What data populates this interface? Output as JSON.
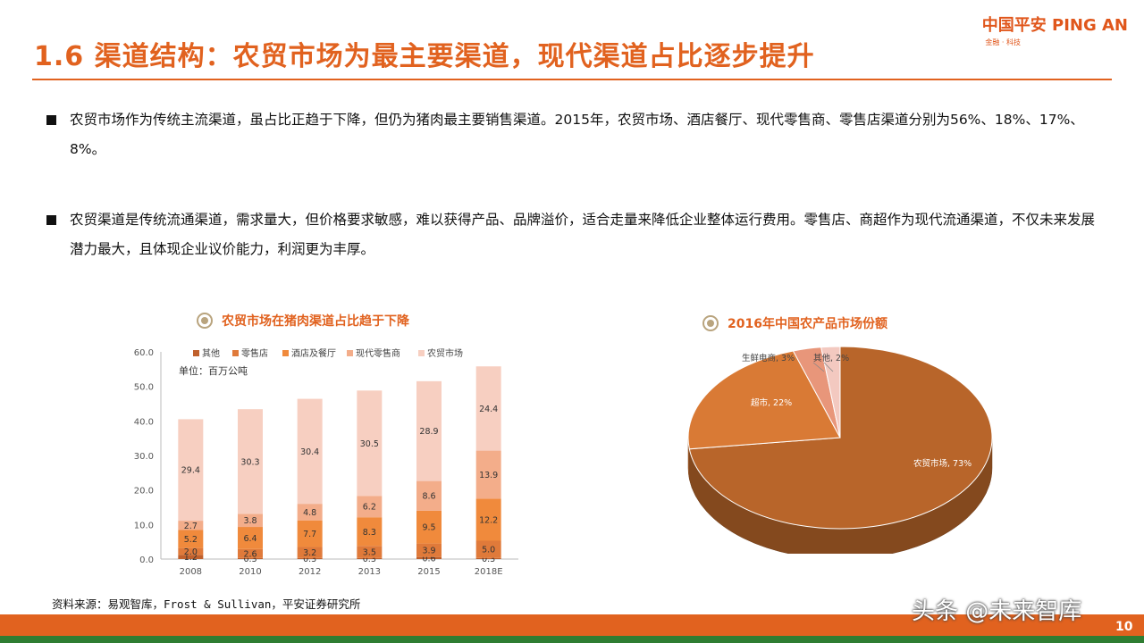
{
  "header": {
    "title": "1.6 渠道结构：农贸市场为最主要渠道，现代渠道占比逐步提升",
    "logo_main": "中国平安 PING AN",
    "logo_sub": "金融 · 科技"
  },
  "bullets": [
    "农贸市场作为传统主流渠道，虽占比正趋于下降，但仍为猪肉最主要销售渠道。2015年，农贸市场、酒店餐厅、现代零售商、零售店渠道分别为56%、18%、17%、8%。",
    "农贸渠道是传统流通渠道，需求量大，但价格要求敏感，难以获得产品、品牌溢价，适合走量来降低企业整体运行费用。零售店、商超作为现代流通渠道，不仅未来发展潜力最大，且体现企业议价能力，利润更为丰厚。"
  ],
  "chart_data": [
    {
      "type": "bar",
      "stacked": true,
      "title": "农贸市场在猪肉渠道占比趋于下降",
      "unit_label": "单位：百万公吨",
      "categories": [
        "2008",
        "2010",
        "2012",
        "2013",
        "2015",
        "2018E"
      ],
      "ylim": [
        0,
        60
      ],
      "yticks": [
        "0.0",
        "10.0",
        "20.0",
        "30.0",
        "40.0",
        "50.0",
        "60.0"
      ],
      "series": [
        {
          "name": "其他",
          "color": "#c0602c",
          "values": [
            1.2,
            0.3,
            0.3,
            0.3,
            0.6,
            0.3
          ],
          "labels": [
            "1.2",
            "0.3",
            "0.3",
            "0.3",
            "0.6",
            "0.3"
          ]
        },
        {
          "name": "零售店",
          "color": "#e07a3a",
          "values": [
            2.0,
            2.6,
            3.2,
            3.5,
            3.9,
            5.0
          ],
          "labels": [
            "2.0",
            "2.6",
            "3.2",
            "3.5",
            "3.9",
            "5.0"
          ]
        },
        {
          "name": "酒店及餐厅",
          "color": "#f08a3c",
          "values": [
            5.2,
            6.4,
            7.7,
            8.3,
            9.5,
            12.2
          ],
          "labels": [
            "5.2",
            "6.4",
            "7.7",
            "8.3",
            "9.5",
            "12.2"
          ]
        },
        {
          "name": "现代零售商",
          "color": "#f3ad8a",
          "values": [
            2.7,
            3.8,
            4.8,
            6.2,
            8.6,
            13.9
          ],
          "labels": [
            "2.7",
            "3.8",
            "4.8",
            "6.2",
            "8.6",
            "13.9"
          ]
        },
        {
          "name": "农贸市场",
          "color": "#f7cfc1",
          "values": [
            29.4,
            30.3,
            30.4,
            30.5,
            28.9,
            24.4
          ],
          "labels": [
            "29.4",
            "30.3",
            "30.4",
            "30.5",
            "28.9",
            "24.4"
          ]
        }
      ]
    },
    {
      "type": "pie",
      "title": "2016年中国农产品市场份额",
      "slices": [
        {
          "label": "农贸市场",
          "value": 73,
          "text": "农贸市场, 73%",
          "color": "#b8652a"
        },
        {
          "label": "超市",
          "value": 22,
          "text": "超市, 22%",
          "color": "#d97a35"
        },
        {
          "label": "生鲜电商",
          "value": 3,
          "text": "生鲜电商, 3%",
          "color": "#e8967a"
        },
        {
          "label": "其他",
          "value": 2,
          "text": "其他, 2%",
          "color": "#f3c9c0"
        }
      ]
    }
  ],
  "footer": {
    "source": "资料来源：易观智库，Frost & Sullivan，平安证券研究所",
    "watermark": "头条 @未来智库",
    "page_number": "10"
  }
}
